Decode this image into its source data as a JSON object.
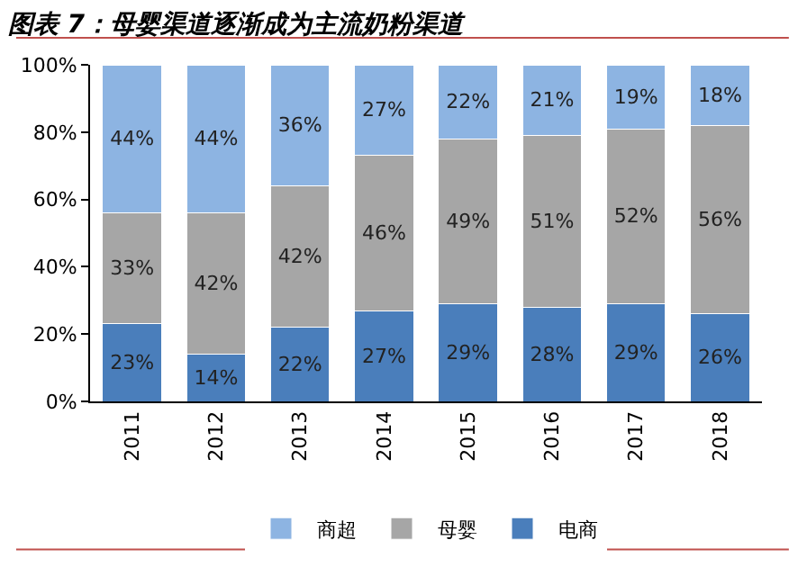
{
  "chart_data": {
    "type": "bar",
    "stacked": true,
    "title": "图表 7：母婴渠道逐渐成为主流奶粉渠道",
    "categories": [
      "2011",
      "2012",
      "2013",
      "2014",
      "2015",
      "2016",
      "2017",
      "2018"
    ],
    "series": [
      {
        "name": "电商",
        "color": "#4a7ebb",
        "values": [
          23,
          14,
          22,
          27,
          29,
          28,
          29,
          26
        ],
        "value_labels": [
          "23%",
          "14%",
          "22%",
          "27%",
          "29%",
          "28%",
          "29%",
          "26%"
        ]
      },
      {
        "name": "母婴",
        "color": "#a6a6a6",
        "values": [
          33,
          42,
          42,
          46,
          49,
          51,
          52,
          56
        ],
        "value_labels": [
          "33%",
          "42%",
          "42%",
          "46%",
          "49%",
          "51%",
          "52%",
          "56%"
        ]
      },
      {
        "name": "商超",
        "color": "#8db4e2",
        "values": [
          44,
          44,
          36,
          27,
          22,
          21,
          19,
          18
        ],
        "value_labels": [
          "44%",
          "44%",
          "36%",
          "27%",
          "22%",
          "21%",
          "19%",
          "18%"
        ]
      }
    ],
    "ylim": [
      0,
      100
    ],
    "yticks": [
      {
        "value": 0,
        "label": "0%"
      },
      {
        "value": 20,
        "label": "20%"
      },
      {
        "value": 40,
        "label": "40%"
      },
      {
        "value": 60,
        "label": "60%"
      },
      {
        "value": 80,
        "label": "80%"
      },
      {
        "value": 100,
        "label": "100%"
      }
    ],
    "legend": "bottom"
  }
}
